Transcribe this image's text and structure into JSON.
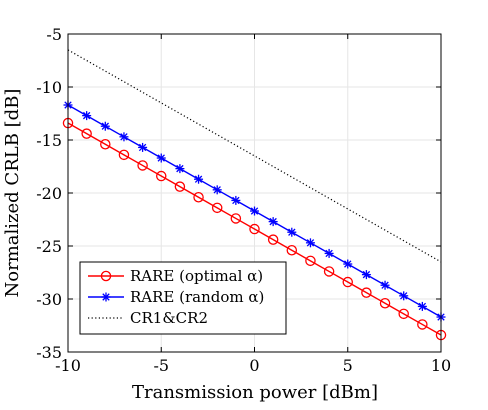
{
  "chart_data": {
    "type": "line",
    "xlabel": "Transmission power [dBm]",
    "ylabel": "Normalized CRLB [dB]",
    "xlim": [
      -10,
      10
    ],
    "ylim": [
      -35,
      -5
    ],
    "xticks": [
      -10,
      -5,
      0,
      5,
      10
    ],
    "yticks": [
      -5,
      -10,
      -15,
      -20,
      -25,
      -30,
      -35
    ],
    "grid": true,
    "legend_position": "bottom-left",
    "x": [
      -10,
      -9,
      -8,
      -7,
      -6,
      -5,
      -4,
      -3,
      -2,
      -1,
      0,
      1,
      2,
      3,
      4,
      5,
      6,
      7,
      8,
      9,
      10
    ],
    "series": [
      {
        "name": "RARE (optimal α)",
        "color": "#ff0000",
        "marker": "circle",
        "line_style": "solid",
        "values": [
          -13.4,
          -14.4,
          -15.4,
          -16.4,
          -17.4,
          -18.4,
          -19.4,
          -20.4,
          -21.4,
          -22.4,
          -23.4,
          -24.4,
          -25.4,
          -26.4,
          -27.4,
          -28.4,
          -29.4,
          -30.4,
          -31.4,
          -32.4,
          -33.4
        ]
      },
      {
        "name": "RARE (random α)",
        "color": "#0000ff",
        "marker": "asterisk",
        "line_style": "solid",
        "values": [
          -11.7,
          -12.7,
          -13.7,
          -14.7,
          -15.7,
          -16.7,
          -17.7,
          -18.7,
          -19.7,
          -20.7,
          -21.7,
          -22.7,
          -23.7,
          -24.7,
          -25.7,
          -26.7,
          -27.7,
          -28.7,
          -29.7,
          -30.7,
          -31.7
        ]
      },
      {
        "name": "CR1&CR2",
        "color": "#000000",
        "marker": "none",
        "line_style": "dotted",
        "values": [
          -6.5,
          -26.5
        ],
        "x": [
          -10,
          10
        ]
      }
    ]
  }
}
